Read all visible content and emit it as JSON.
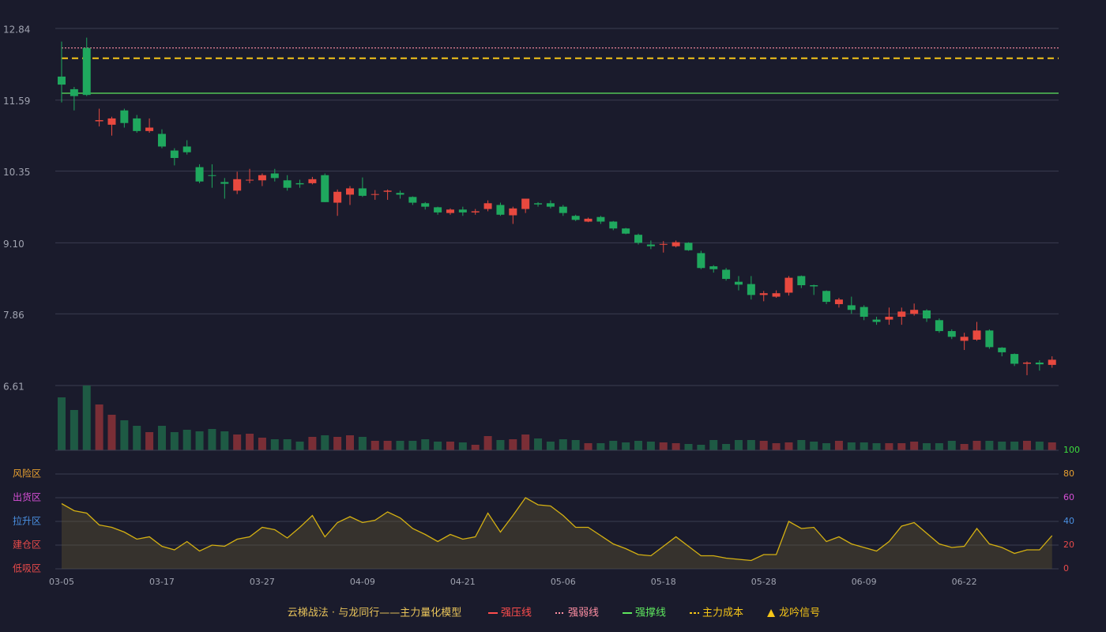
{
  "chart_data": {
    "type": "candlestick",
    "title": "云梯战法 · 与龙同行——主力量化模型",
    "categories": [
      "03-05",
      null,
      null,
      null,
      null,
      null,
      null,
      null,
      "03-17",
      null,
      null,
      null,
      null,
      null,
      null,
      null,
      "03-27",
      null,
      null,
      null,
      null,
      null,
      null,
      null,
      "04-09",
      null,
      null,
      null,
      null,
      null,
      null,
      null,
      "04-21",
      null,
      null,
      null,
      null,
      null,
      null,
      null,
      "05-06",
      null,
      null,
      null,
      null,
      null,
      null,
      null,
      "05-18",
      null,
      null,
      null,
      null,
      null,
      null,
      null,
      "05-28",
      null,
      null,
      null,
      null,
      null,
      null,
      null,
      "06-09",
      null,
      null,
      null,
      null,
      null,
      null,
      null,
      "06-22",
      null,
      null,
      null,
      null,
      null,
      null,
      null
    ],
    "open": [
      12.0,
      11.78,
      12.5,
      11.22,
      11.16,
      11.41,
      11.27,
      11.05,
      11.0,
      10.71,
      10.78,
      10.42,
      10.28,
      10.16,
      10.01,
      10.19,
      10.19,
      10.31,
      10.19,
      10.14,
      10.14,
      10.28,
      9.8,
      9.94,
      10.05,
      9.94,
      9.99,
      9.97,
      9.9,
      9.79,
      9.72,
      9.62,
      9.68,
      9.63,
      9.69,
      9.76,
      9.58,
      9.69,
      9.79,
      9.79,
      9.73,
      9.57,
      9.47,
      9.55,
      9.47,
      9.35,
      9.24,
      9.07,
      9.07,
      9.04,
      9.1,
      8.92,
      8.69,
      8.63,
      8.42,
      8.38,
      8.19,
      8.16,
      8.23,
      8.52,
      8.36,
      8.26,
      8.03,
      8.01,
      7.98,
      7.76,
      7.76,
      7.81,
      7.86,
      7.92,
      7.75,
      7.56,
      7.39,
      7.41,
      7.57,
      7.27,
      7.16,
      6.99,
      7.01,
      6.97
    ],
    "close": [
      11.86,
      11.66,
      11.68,
      11.24,
      11.27,
      11.19,
      11.05,
      11.11,
      10.78,
      10.58,
      10.68,
      10.17,
      10.27,
      10.13,
      10.21,
      10.2,
      10.28,
      10.23,
      10.06,
      10.12,
      10.21,
      9.81,
      9.99,
      10.05,
      9.92,
      9.95,
      10.01,
      9.94,
      9.8,
      9.73,
      9.63,
      9.68,
      9.63,
      9.65,
      9.79,
      9.59,
      9.7,
      9.87,
      9.77,
      9.73,
      9.62,
      9.5,
      9.52,
      9.47,
      9.35,
      9.26,
      9.1,
      9.04,
      9.08,
      9.11,
      8.97,
      8.66,
      8.64,
      8.47,
      8.37,
      8.19,
      8.22,
      8.22,
      8.49,
      8.36,
      8.34,
      8.07,
      8.11,
      7.93,
      7.81,
      7.72,
      7.81,
      7.9,
      7.93,
      7.78,
      7.56,
      7.46,
      7.46,
      7.57,
      7.28,
      7.19,
      6.99,
      7.01,
      6.98,
      7.06
    ],
    "high": [
      12.61,
      11.82,
      12.68,
      11.44,
      11.3,
      11.44,
      11.33,
      11.27,
      11.08,
      10.75,
      10.89,
      10.47,
      10.47,
      10.23,
      10.34,
      10.39,
      10.31,
      10.39,
      10.28,
      10.2,
      10.25,
      10.31,
      10.03,
      10.09,
      10.24,
      10.02,
      10.03,
      10.01,
      9.91,
      9.81,
      9.73,
      9.7,
      9.73,
      9.69,
      9.84,
      9.8,
      9.73,
      9.87,
      9.81,
      9.84,
      9.76,
      9.59,
      9.54,
      9.57,
      9.48,
      9.36,
      9.26,
      9.14,
      9.13,
      9.14,
      9.11,
      8.96,
      8.71,
      8.66,
      8.52,
      8.52,
      8.26,
      8.27,
      8.52,
      8.53,
      8.37,
      8.27,
      8.14,
      8.16,
      8.01,
      7.81,
      7.97,
      7.97,
      8.04,
      7.94,
      7.78,
      7.59,
      7.53,
      7.72,
      7.59,
      7.28,
      7.17,
      7.03,
      7.05,
      7.12
    ],
    "low": [
      11.55,
      11.41,
      11.66,
      11.13,
      10.97,
      11.11,
      11.02,
      11.02,
      10.75,
      10.45,
      10.64,
      10.14,
      10.06,
      9.87,
      9.95,
      10.14,
      10.09,
      10.17,
      10.01,
      10.06,
      10.12,
      9.81,
      9.57,
      9.76,
      9.9,
      9.85,
      9.85,
      9.87,
      9.76,
      9.68,
      9.59,
      9.59,
      9.57,
      9.59,
      9.65,
      9.57,
      9.43,
      9.62,
      9.73,
      9.7,
      9.57,
      9.48,
      9.46,
      9.43,
      9.32,
      9.25,
      9.07,
      8.99,
      8.93,
      9.02,
      8.96,
      8.64,
      8.58,
      8.44,
      8.27,
      8.11,
      8.08,
      8.14,
      8.18,
      8.31,
      8.19,
      8.03,
      7.97,
      7.86,
      7.75,
      7.67,
      7.67,
      7.67,
      7.83,
      7.72,
      7.53,
      7.42,
      7.23,
      7.39,
      7.25,
      7.12,
      6.95,
      6.79,
      6.87,
      6.92
    ],
    "volume": [
      67,
      51,
      82,
      58,
      45,
      38,
      31,
      23,
      31,
      23,
      26,
      24,
      27,
      24,
      20,
      21,
      16,
      14,
      14,
      11,
      17,
      19,
      17,
      19,
      17,
      12,
      12,
      12,
      12,
      14,
      11,
      11,
      10,
      7,
      18,
      13,
      14,
      20,
      15,
      11,
      14,
      13,
      9,
      9,
      12,
      10,
      12,
      11,
      10,
      9,
      8,
      7,
      13,
      8,
      13,
      13,
      12,
      9,
      10,
      13,
      11,
      9,
      12,
      10,
      10,
      9,
      9,
      9,
      11,
      9,
      9,
      12,
      8,
      12,
      12,
      11,
      11,
      12,
      11,
      10
    ],
    "up_color": "#e8493f",
    "down_color": "#1fa85e",
    "ylim": [
      6.61,
      12.84
    ],
    "yticks": [
      12.84,
      11.59,
      10.35,
      {
        "value": 9.1,
        "label": "9.10"
      },
      7.86,
      6.61
    ],
    "grid": true,
    "levels": [
      {
        "name": "强压线",
        "color": "#ff4d4d",
        "style": "solid"
      },
      {
        "name": "强弱线",
        "color": "#ff8fa3",
        "style": "dotted",
        "value": 12.5
      },
      {
        "name": "强撑线",
        "color": "#5ee65e",
        "style": "solid",
        "value": 11.71
      },
      {
        "name": "主力成本",
        "color": "#f5c518",
        "style": "dashed",
        "value": 12.32
      }
    ],
    "signal": {
      "name": "龙吟信号",
      "color": "#f5c518"
    },
    "indicator": {
      "color": "#d4b012",
      "values": [
        55,
        49,
        47,
        37,
        35,
        31,
        25,
        27,
        19,
        16,
        23,
        15,
        20,
        19,
        25,
        27,
        35,
        33,
        26,
        35,
        45,
        27,
        39,
        44,
        39,
        41,
        48,
        43,
        34,
        29,
        23,
        29,
        25,
        27,
        47,
        31,
        45,
        60,
        54,
        53,
        45,
        35,
        35,
        28,
        21,
        17,
        12,
        11,
        19,
        27,
        19,
        11,
        11,
        9,
        8,
        7,
        12,
        12,
        40,
        34,
        35,
        23,
        27,
        21,
        18,
        15,
        23,
        36,
        39,
        30,
        21,
        18,
        19,
        34,
        21,
        18,
        13,
        16,
        16,
        28
      ],
      "ylim": [
        0,
        100
      ],
      "yticks": [
        0,
        20,
        40,
        60,
        80,
        100
      ],
      "ytick_colors": [
        "#e84a4a",
        "#e84a4a",
        "#4a90e2",
        "#d64fd6",
        "#e8a030",
        "#3ddc3d"
      ],
      "zones": [
        {
          "name": "低吸区",
          "value": 0,
          "color": "#e84a4a"
        },
        {
          "name": "建仓区",
          "value": 20,
          "color": "#e84a4a"
        },
        {
          "name": "拉升区",
          "value": 40,
          "color": "#4a90e2"
        },
        {
          "name": "出货区",
          "value": 60,
          "color": "#d64fd6"
        },
        {
          "name": "风险区",
          "value": 80,
          "color": "#e8a030"
        }
      ]
    }
  }
}
